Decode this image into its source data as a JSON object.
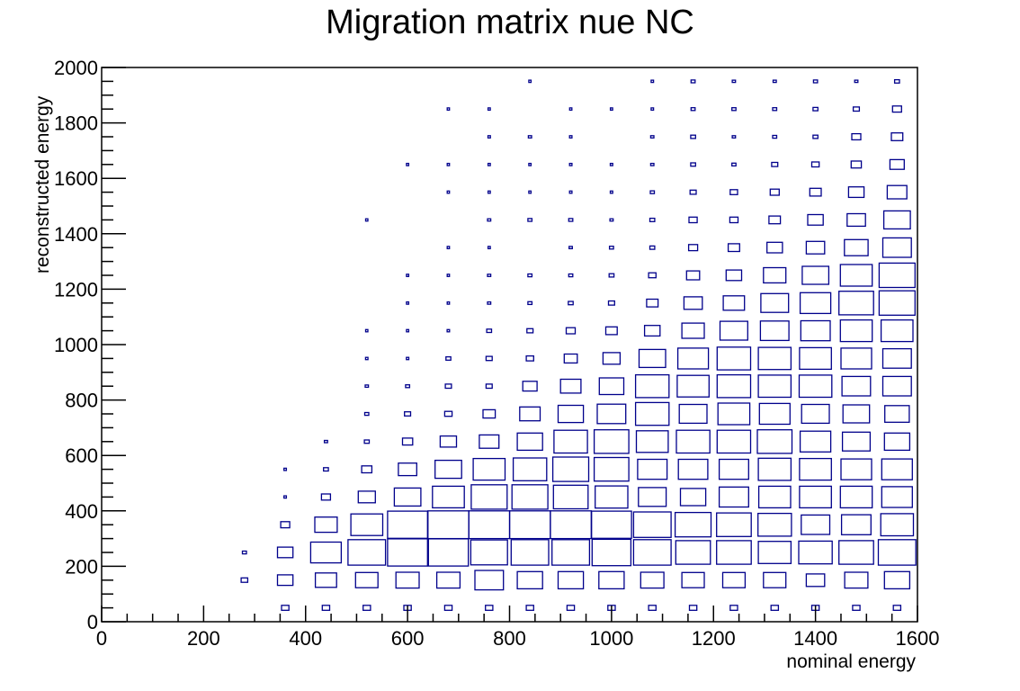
{
  "chart_data": {
    "type": "box-histogram-2d",
    "title": "Migration matrix nue NC",
    "xlabel": "nominal energy",
    "ylabel": "reconstructed energy",
    "xlim": [
      0,
      1600
    ],
    "ylim": [
      0,
      2000
    ],
    "x_bin_width": 80,
    "y_bin_width": 100,
    "x_ticks": [
      0,
      200,
      400,
      600,
      800,
      1000,
      1200,
      1400,
      1600
    ],
    "y_ticks": [
      0,
      200,
      400,
      600,
      800,
      1000,
      1200,
      1400,
      1600,
      1800,
      2000
    ],
    "box_color": "#00008b",
    "grid": false,
    "cells_note": "rows indexed by reconstructed-energy bin center (y); cols indexed by nominal-energy bin center (x); values are relative weights (box size)",
    "x_centers": [
      280,
      360,
      440,
      520,
      600,
      680,
      760,
      840,
      920,
      1000,
      1080,
      1160,
      1240,
      1320,
      1400,
      1480,
      1560
    ],
    "rows": [
      {
        "y": 50,
        "values": [
          0,
          0.18,
          0.18,
          0.18,
          0.18,
          0.18,
          0.18,
          0.18,
          0.18,
          0.18,
          0.18,
          0.18,
          0.18,
          0.18,
          0.18,
          0.18,
          0.18
        ]
      },
      {
        "y": 150,
        "values": [
          0.16,
          0.38,
          0.52,
          0.55,
          0.57,
          0.57,
          0.7,
          0.62,
          0.62,
          0.62,
          0.57,
          0.55,
          0.55,
          0.55,
          0.45,
          0.57,
          0.62
        ]
      },
      {
        "y": 250,
        "values": [
          0.1,
          0.38,
          0.75,
          0.92,
          0.98,
          0.98,
          0.9,
          0.92,
          0.92,
          0.95,
          0.92,
          0.85,
          0.85,
          0.8,
          0.82,
          0.85,
          0.92
        ]
      },
      {
        "y": 350,
        "values": [
          0,
          0.22,
          0.55,
          0.78,
          0.98,
          1.0,
          1.0,
          1.0,
          1.0,
          0.98,
          0.92,
          0.88,
          0.85,
          0.82,
          0.7,
          0.72,
          0.8
        ]
      },
      {
        "y": 450,
        "values": [
          0,
          0.06,
          0.22,
          0.42,
          0.65,
          0.78,
          0.88,
          0.88,
          0.85,
          0.8,
          0.68,
          0.62,
          0.72,
          0.78,
          0.78,
          0.78,
          0.75
        ]
      },
      {
        "y": 550,
        "values": [
          0,
          0.06,
          0.12,
          0.25,
          0.45,
          0.65,
          0.78,
          0.82,
          0.88,
          0.85,
          0.72,
          0.72,
          0.72,
          0.8,
          0.78,
          0.75,
          0.75
        ]
      },
      {
        "y": 650,
        "values": [
          0,
          0,
          0.08,
          0.12,
          0.25,
          0.4,
          0.48,
          0.62,
          0.82,
          0.85,
          0.78,
          0.82,
          0.82,
          0.85,
          0.75,
          0.68,
          0.62
        ]
      },
      {
        "y": 750,
        "values": [
          0,
          0,
          0,
          0.1,
          0.15,
          0.18,
          0.3,
          0.5,
          0.62,
          0.7,
          0.82,
          0.68,
          0.78,
          0.75,
          0.68,
          0.65,
          0.6
        ]
      },
      {
        "y": 850,
        "values": [
          0,
          0,
          0,
          0.08,
          0.1,
          0.15,
          0.15,
          0.35,
          0.5,
          0.6,
          0.82,
          0.78,
          0.82,
          0.8,
          0.8,
          0.7,
          0.7
        ]
      },
      {
        "y": 950,
        "values": [
          0,
          0,
          0,
          0.06,
          0.06,
          0.12,
          0.15,
          0.18,
          0.32,
          0.42,
          0.65,
          0.75,
          0.82,
          0.8,
          0.78,
          0.75,
          0.7
        ]
      },
      {
        "y": 1050,
        "values": [
          0,
          0,
          0,
          0.04,
          0.04,
          0.06,
          0.12,
          0.15,
          0.22,
          0.28,
          0.38,
          0.55,
          0.68,
          0.7,
          0.72,
          0.78,
          0.78
        ]
      },
      {
        "y": 1150,
        "values": [
          0,
          0,
          0,
          0,
          0.04,
          0.04,
          0.08,
          0.1,
          0.12,
          0.15,
          0.28,
          0.45,
          0.52,
          0.68,
          0.75,
          0.85,
          0.88
        ]
      },
      {
        "y": 1250,
        "values": [
          0,
          0,
          0,
          0,
          0.04,
          0.04,
          0.08,
          0.1,
          0.1,
          0.12,
          0.18,
          0.32,
          0.38,
          0.55,
          0.65,
          0.78,
          0.88
        ]
      },
      {
        "y": 1350,
        "values": [
          0,
          0,
          0,
          0,
          0,
          0.04,
          0.04,
          0,
          0.08,
          0.1,
          0.12,
          0.22,
          0.28,
          0.38,
          0.45,
          0.58,
          0.7
        ]
      },
      {
        "y": 1450,
        "values": [
          0,
          0,
          0,
          0.04,
          0,
          0,
          0.08,
          0.1,
          0.1,
          0.08,
          0.12,
          0.2,
          0.2,
          0.28,
          0.38,
          0.45,
          0.65
        ]
      },
      {
        "y": 1550,
        "values": [
          0,
          0,
          0,
          0,
          0,
          0.04,
          0.04,
          0.04,
          0.06,
          0.06,
          0.1,
          0.15,
          0.18,
          0.22,
          0.28,
          0.38,
          0.48
        ]
      },
      {
        "y": 1650,
        "values": [
          0,
          0,
          0,
          0,
          0.04,
          0.04,
          0.04,
          0.04,
          0.06,
          0.06,
          0.08,
          0.12,
          0.1,
          0.15,
          0.18,
          0.25,
          0.35
        ]
      },
      {
        "y": 1750,
        "values": [
          0,
          0,
          0,
          0,
          0,
          0,
          0.06,
          0.08,
          0.06,
          0,
          0.08,
          0.12,
          0.08,
          0.1,
          0.12,
          0.22,
          0.28
        ]
      },
      {
        "y": 1850,
        "values": [
          0,
          0,
          0,
          0,
          0,
          0.04,
          0.04,
          0,
          0.04,
          0.04,
          0.06,
          0.1,
          0.1,
          0.1,
          0.12,
          0.15,
          0.22
        ]
      },
      {
        "y": 1950,
        "values": [
          0,
          0,
          0,
          0,
          0,
          0,
          0,
          0.04,
          0,
          0,
          0.06,
          0.1,
          0.08,
          0.08,
          0.1,
          0.08,
          0.12
        ]
      }
    ]
  }
}
